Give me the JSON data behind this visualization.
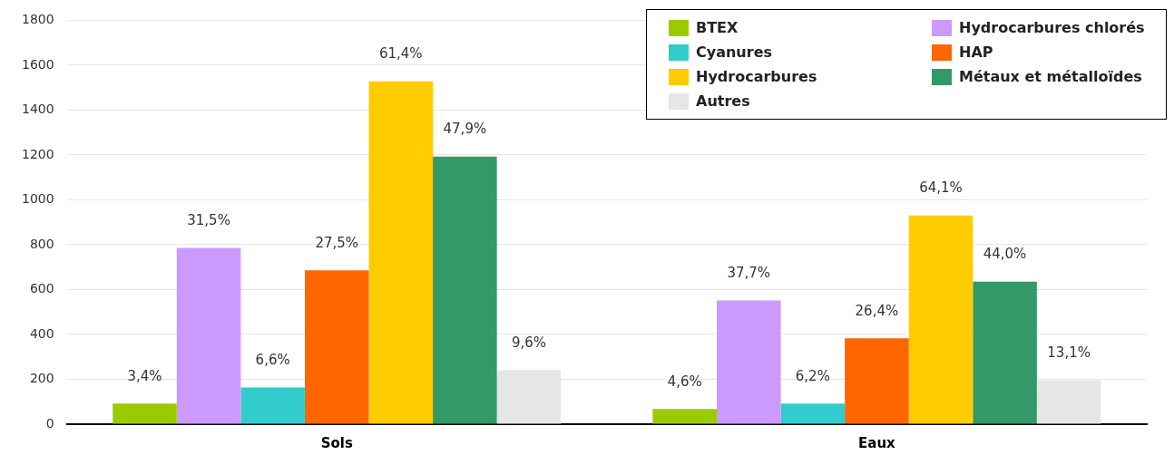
{
  "chart_data": {
    "type": "bar",
    "categories": [
      "Sols",
      "Eaux"
    ],
    "series": [
      {
        "name": "BTEX",
        "color": "#99cc00",
        "values": [
          92,
          68
        ]
      },
      {
        "name": "Hydrocarbures chlorés",
        "color": "#cc99ff",
        "values": [
          786,
          551
        ]
      },
      {
        "name": "Cyanures",
        "color": "#33cccc",
        "values": [
          164,
          92
        ]
      },
      {
        "name": "HAP",
        "color": "#ff6600",
        "values": [
          686,
          383
        ]
      },
      {
        "name": "Hydrocarbures",
        "color": "#ffcc00",
        "values": [
          1528,
          930
        ]
      },
      {
        "name": "Métaux et métalloïdes",
        "color": "#339966",
        "values": [
          1193,
          635
        ]
      },
      {
        "name": "Autres",
        "color": "#e6e6e6",
        "values": [
          240,
          196
        ]
      }
    ],
    "annotations": [
      "3,4%",
      "31,5%",
      "6,6%",
      "27,5%",
      "61,4%",
      "47,9%",
      "9,6%",
      "4,6%",
      "37,7%",
      "6,2%",
      "26,4%",
      "64,1%",
      "44,0%",
      "13,1%"
    ],
    "ylim": [
      0,
      1800
    ],
    "yticks": [
      0,
      200,
      400,
      600,
      800,
      1000,
      1200,
      1400,
      1600,
      1800
    ],
    "grid": "y",
    "legend": "top right"
  }
}
